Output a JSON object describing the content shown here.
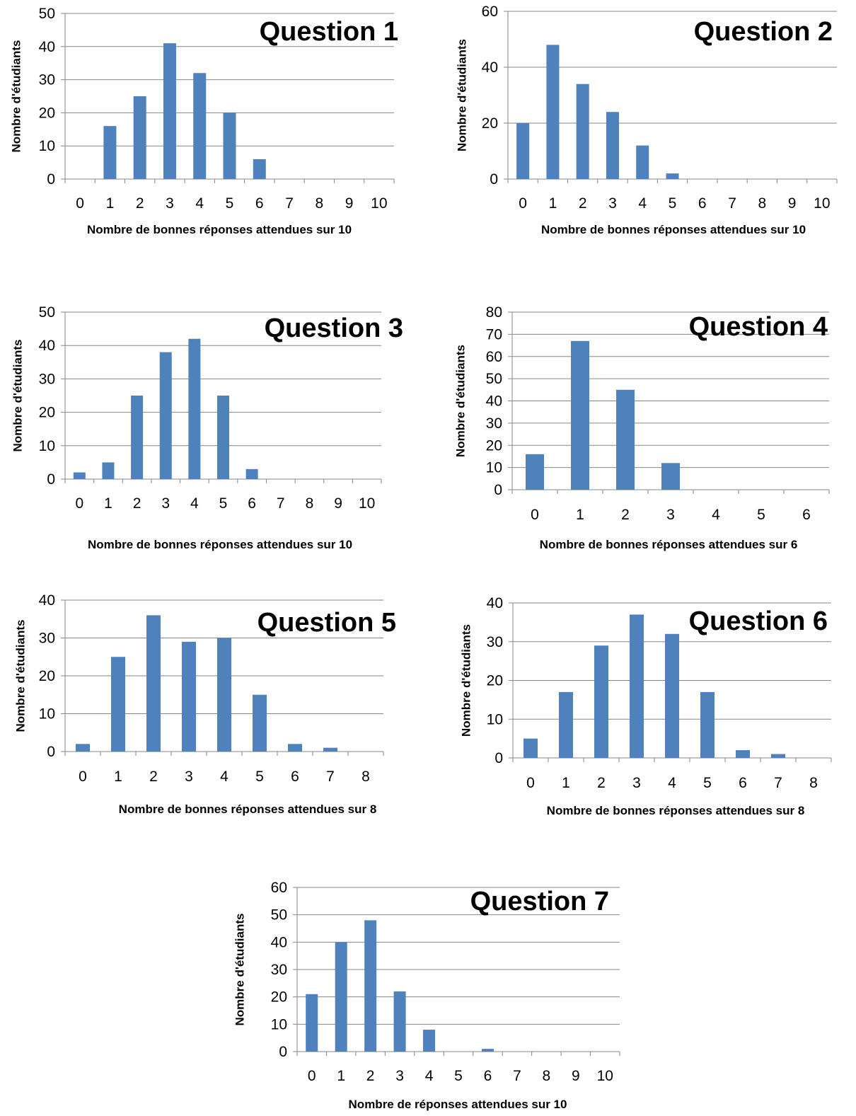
{
  "chart_data": [
    {
      "type": "bar",
      "title": "Question 1",
      "xlabel": "Nombre de bonnes réponses attendues sur 10",
      "ylabel": "Nombre d'étudiants",
      "categories": [
        "0",
        "1",
        "2",
        "3",
        "4",
        "5",
        "6",
        "7",
        "8",
        "9",
        "10"
      ],
      "values": [
        0,
        16,
        25,
        41,
        32,
        20,
        6,
        0,
        0,
        0,
        0
      ],
      "ylim": [
        0,
        50
      ],
      "yticks": [
        0,
        10,
        20,
        30,
        40,
        50
      ],
      "grid": true,
      "bar_color": "#4f81bd"
    },
    {
      "type": "bar",
      "title": "Question 2",
      "xlabel": "Nombre de bonnes réponses attendues sur 10",
      "ylabel": "Nombre d'étudiants",
      "categories": [
        "0",
        "1",
        "2",
        "3",
        "4",
        "5",
        "6",
        "7",
        "8",
        "9",
        "10"
      ],
      "values": [
        20,
        48,
        34,
        24,
        12,
        2,
        0,
        0,
        0,
        0,
        0
      ],
      "ylim": [
        0,
        60
      ],
      "yticks": [
        0,
        20,
        40,
        60
      ],
      "grid": true,
      "bar_color": "#4f81bd"
    },
    {
      "type": "bar",
      "title": "Question 3",
      "xlabel": "Nombre de bonnes réponses attendues sur 10",
      "ylabel": "Nombre d'étudiants",
      "categories": [
        "0",
        "1",
        "2",
        "3",
        "4",
        "5",
        "6",
        "7",
        "8",
        "9",
        "10"
      ],
      "values": [
        2,
        5,
        25,
        38,
        42,
        25,
        3,
        0,
        0,
        0,
        0
      ],
      "ylim": [
        0,
        50
      ],
      "yticks": [
        0,
        10,
        20,
        30,
        40,
        50
      ],
      "grid": true,
      "bar_color": "#4f81bd"
    },
    {
      "type": "bar",
      "title": "Question 4",
      "xlabel": "Nombre de bonnes réponses attendues sur 6",
      "ylabel": "Nombre d'étudiants",
      "categories": [
        "0",
        "1",
        "2",
        "3",
        "4",
        "5",
        "6"
      ],
      "values": [
        16,
        67,
        45,
        12,
        0,
        0,
        0
      ],
      "ylim": [
        0,
        80
      ],
      "yticks": [
        0,
        10,
        20,
        30,
        40,
        50,
        60,
        70,
        80
      ],
      "grid": true,
      "bar_color": "#4f81bd"
    },
    {
      "type": "bar",
      "title": "Question 5",
      "xlabel": "Nombre de bonnes réponses attendues sur 8",
      "ylabel": "Nombre d'étudiants",
      "categories": [
        "0",
        "1",
        "2",
        "3",
        "4",
        "5",
        "6",
        "7",
        "8"
      ],
      "values": [
        2,
        25,
        36,
        29,
        30,
        15,
        2,
        1,
        0
      ],
      "ylim": [
        0,
        40
      ],
      "yticks": [
        0,
        10,
        20,
        30,
        40
      ],
      "grid": true,
      "bar_color": "#4f81bd"
    },
    {
      "type": "bar",
      "title": "Question 6",
      "xlabel": "Nombre de bonnes réponses attendues sur 8",
      "ylabel": "Nombre d'étudiants",
      "categories": [
        "0",
        "1",
        "2",
        "3",
        "4",
        "5",
        "6",
        "7",
        "8"
      ],
      "values": [
        5,
        17,
        29,
        37,
        32,
        17,
        2,
        1,
        0
      ],
      "ylim": [
        0,
        40
      ],
      "yticks": [
        0,
        10,
        20,
        30,
        40
      ],
      "grid": true,
      "bar_color": "#4f81bd"
    },
    {
      "type": "bar",
      "title": "Question 7",
      "xlabel": "Nombre de réponses attendues sur 10",
      "ylabel": "Nombre d'étudiants",
      "categories": [
        "0",
        "1",
        "2",
        "3",
        "4",
        "5",
        "6",
        "7",
        "8",
        "9",
        "10"
      ],
      "values": [
        21,
        40,
        48,
        22,
        8,
        0,
        1,
        0,
        0,
        0,
        0
      ],
      "ylim": [
        0,
        60
      ],
      "yticks": [
        0,
        10,
        20,
        30,
        40,
        50,
        60
      ],
      "grid": true,
      "bar_color": "#4f81bd"
    }
  ]
}
